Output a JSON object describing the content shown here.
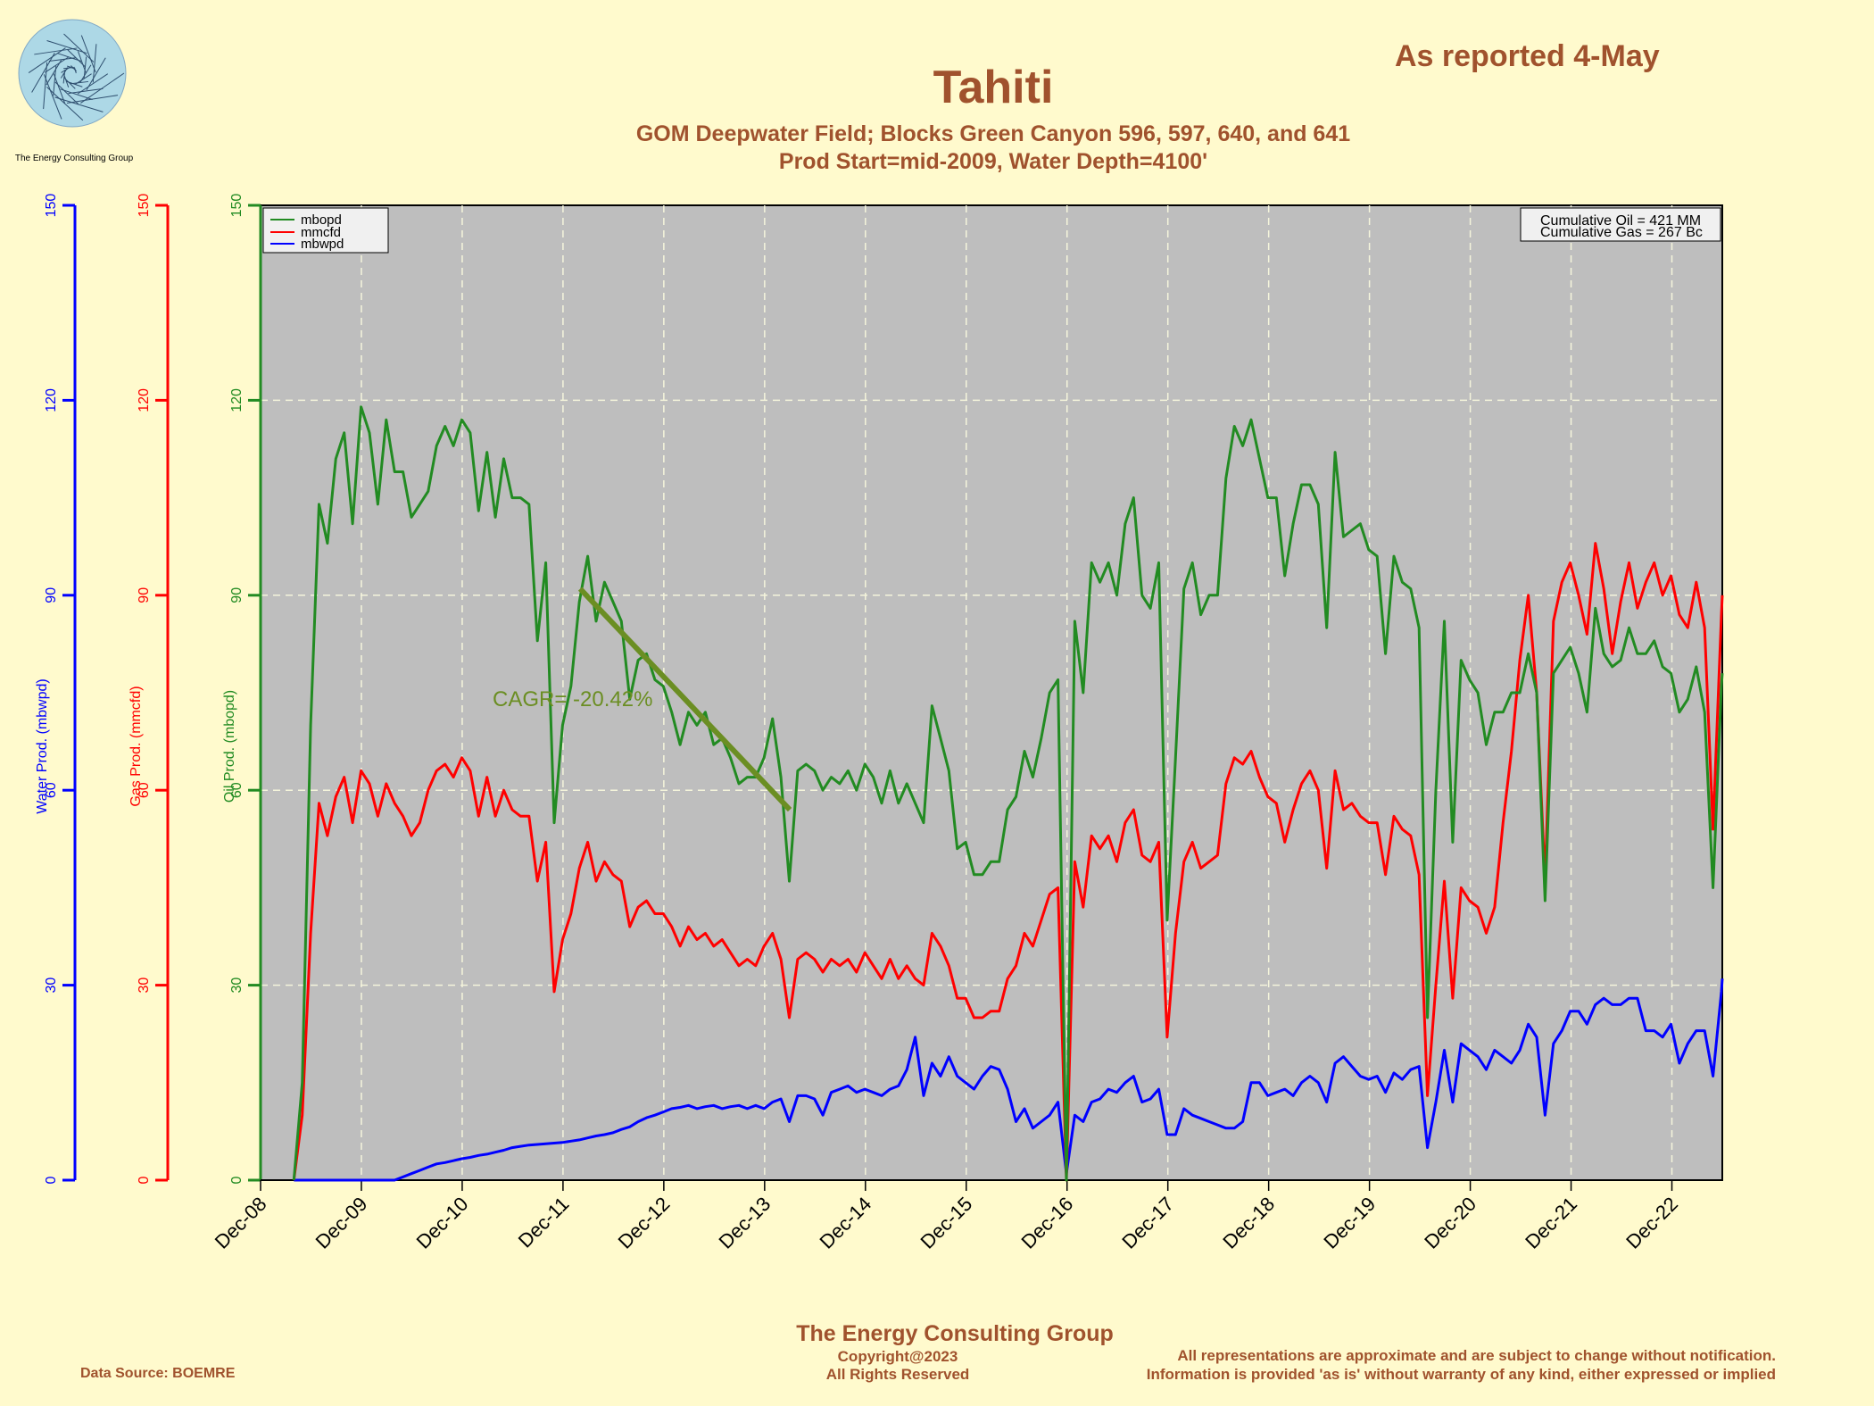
{
  "header": {
    "title": "Tahiti",
    "subtitle1": "GOM Deepwater Field; Blocks Green Canyon 596, 597, 640, and 641",
    "subtitle2": "Prod Start=mid-2009, Water Depth=4100'",
    "reported": "As reported 4-May"
  },
  "logo": {
    "icon": "spiral-logo-icon",
    "caption": "The Energy Consulting Group"
  },
  "footer": {
    "company": "The Energy Consulting Group",
    "copyright": "Copyright@2023",
    "rights": "All Rights Reserved",
    "source": "Data Source: BOEMRE",
    "disclaimer1": "All representations are approximate and are subject to change without notification.",
    "disclaimer2": "Information is provided 'as is' without warranty of any kind, either expressed or implied"
  },
  "colors": {
    "background": "#fffacd",
    "plot_bg": "#bebebe",
    "oil": "#228b22",
    "gas": "#ff0000",
    "water": "#0000ff",
    "trend": "#6b8e23",
    "text_brown": "#a0522d"
  },
  "chart_data": {
    "type": "line",
    "x_unit": "years since Dec-08 (monthly points)",
    "xlim": [
      0,
      14.5
    ],
    "x_tick_labels": [
      "Dec-08",
      "Dec-09",
      "Dec-10",
      "Dec-11",
      "Dec-12",
      "Dec-13",
      "Dec-14",
      "Dec-15",
      "Dec-16",
      "Dec-17",
      "Dec-18",
      "Dec-19",
      "Dec-20",
      "Dec-21",
      "Dec-22"
    ],
    "ylim": [
      0,
      150
    ],
    "y_ticks": [
      0,
      30,
      60,
      90,
      120,
      150
    ],
    "grid": true,
    "axes": [
      {
        "label": "Water Prod. (mbwpd)",
        "color": "#0000ff"
      },
      {
        "label": "Gas Prod. (mmcfd)",
        "color": "#ff0000"
      },
      {
        "label": "Oil Prod. (mbopd)",
        "color": "#228b22"
      }
    ],
    "legend": {
      "position": "top-left",
      "entries": [
        "mbopd",
        "mmcfd",
        "mbwpd"
      ]
    },
    "cumulative": [
      "Cumulative Oil = 421  MM",
      "Cumulative Gas = 267  Bc"
    ],
    "annotation": {
      "text": "CAGR= -20.42%",
      "trend_start": [
        3.17,
        91
      ],
      "trend_end": [
        5.25,
        57
      ]
    },
    "series": [
      {
        "name": "mbopd",
        "x_start": 0.33,
        "x_step": 0.0833,
        "values": [
          0,
          15,
          70,
          104,
          98,
          111,
          115,
          101,
          119,
          115,
          104,
          117,
          109,
          109,
          102,
          104,
          106,
          113,
          116,
          113,
          117,
          115,
          103,
          112,
          102,
          111,
          105,
          105,
          104,
          83,
          95,
          55,
          70,
          76,
          89,
          96,
          86,
          92,
          89,
          86,
          74,
          80,
          81,
          77,
          76,
          72,
          67,
          72,
          70,
          72,
          67,
          68,
          65,
          61,
          62,
          62,
          65,
          71,
          62,
          46,
          63,
          64,
          63,
          60,
          62,
          61,
          63,
          60,
          64,
          62,
          58,
          63,
          58,
          61,
          58,
          55,
          73,
          68,
          63,
          51,
          52,
          47,
          47,
          49,
          49,
          57,
          59,
          66,
          62,
          68,
          75,
          77,
          0,
          86,
          75,
          95,
          92,
          95,
          90,
          101,
          105,
          90,
          88,
          95,
          40,
          65,
          91,
          95,
          87,
          90,
          90,
          108,
          116,
          113,
          117,
          111,
          105,
          105,
          93,
          101,
          107,
          107,
          104,
          85,
          112,
          99,
          100,
          101,
          97,
          96,
          81,
          96,
          92,
          91,
          85,
          25,
          60,
          86,
          52,
          80,
          77,
          75,
          67,
          72,
          72,
          75,
          75,
          81,
          75,
          43,
          78,
          80,
          82,
          78,
          72,
          88,
          81,
          79,
          80,
          85,
          81,
          81,
          83,
          79,
          78,
          72,
          74,
          79,
          72,
          45,
          76,
          78
        ]
      },
      {
        "name": "mmcfd",
        "x_start": 0.33,
        "x_step": 0.0833,
        "values": [
          0,
          10,
          38,
          58,
          53,
          59,
          62,
          55,
          63,
          61,
          56,
          61,
          58,
          56,
          53,
          55,
          60,
          63,
          64,
          62,
          65,
          63,
          56,
          62,
          56,
          60,
          57,
          56,
          56,
          46,
          52,
          29,
          37,
          41,
          48,
          52,
          46,
          49,
          47,
          46,
          39,
          42,
          43,
          41,
          41,
          39,
          36,
          39,
          37,
          38,
          36,
          37,
          35,
          33,
          34,
          33,
          36,
          38,
          34,
          25,
          34,
          35,
          34,
          32,
          34,
          33,
          34,
          32,
          35,
          33,
          31,
          34,
          31,
          33,
          31,
          30,
          38,
          36,
          33,
          28,
          28,
          25,
          25,
          26,
          26,
          31,
          33,
          38,
          36,
          40,
          44,
          45,
          0,
          49,
          42,
          53,
          51,
          53,
          49,
          55,
          57,
          50,
          49,
          52,
          22,
          38,
          49,
          52,
          48,
          49,
          50,
          61,
          65,
          64,
          66,
          62,
          59,
          58,
          52,
          57,
          61,
          63,
          60,
          48,
          63,
          57,
          58,
          56,
          55,
          55,
          47,
          56,
          54,
          53,
          47,
          13,
          30,
          46,
          28,
          45,
          43,
          42,
          38,
          42,
          55,
          66,
          80,
          90,
          75,
          46,
          86,
          92,
          95,
          90,
          84,
          98,
          91,
          81,
          89,
          95,
          88,
          92,
          95,
          90,
          93,
          87,
          85,
          92,
          85,
          54,
          87,
          90
        ]
      },
      {
        "name": "mbwpd",
        "x_start": 0.33,
        "x_step": 0.0833,
        "values": [
          0,
          0,
          0,
          0,
          0,
          0,
          0,
          0,
          0,
          0,
          0,
          0,
          0,
          0.5,
          1,
          1.5,
          2,
          2.5,
          2.7,
          3,
          3.3,
          3.5,
          3.8,
          4,
          4.3,
          4.6,
          5,
          5.2,
          5.4,
          5.5,
          5.6,
          5.7,
          5.8,
          6,
          6.2,
          6.5,
          6.8,
          7,
          7.3,
          7.8,
          8.2,
          9,
          9.6,
          10,
          10.5,
          11,
          11.2,
          11.5,
          11,
          11.3,
          11.5,
          11,
          11.3,
          11.5,
          11,
          11.5,
          11,
          12,
          12.5,
          9,
          13,
          13,
          12.5,
          10,
          13.5,
          14,
          14.5,
          13.5,
          14,
          13.5,
          13,
          14,
          14.5,
          17,
          22,
          13,
          18,
          16,
          19,
          16,
          15,
          14,
          16,
          17.5,
          17,
          14,
          9,
          11,
          8,
          9,
          10,
          12,
          1,
          10,
          9,
          12,
          12.5,
          14,
          13.5,
          15,
          16,
          12,
          12.5,
          14,
          7,
          7,
          11,
          10,
          9.5,
          9,
          8.5,
          8,
          8,
          9,
          15,
          15,
          13,
          13.5,
          14,
          13,
          15,
          16,
          15,
          12,
          18,
          19,
          17.5,
          16,
          15.5,
          16,
          13.5,
          16.5,
          15.5,
          17,
          17.5,
          5,
          12,
          20,
          12,
          21,
          20,
          19,
          17,
          20,
          19,
          18,
          20,
          24,
          22,
          10,
          21,
          23,
          26,
          26,
          24,
          27,
          28,
          27,
          27,
          28,
          28,
          23,
          23,
          22,
          24,
          18,
          21,
          23,
          23,
          16,
          29,
          31
        ]
      }
    ]
  }
}
